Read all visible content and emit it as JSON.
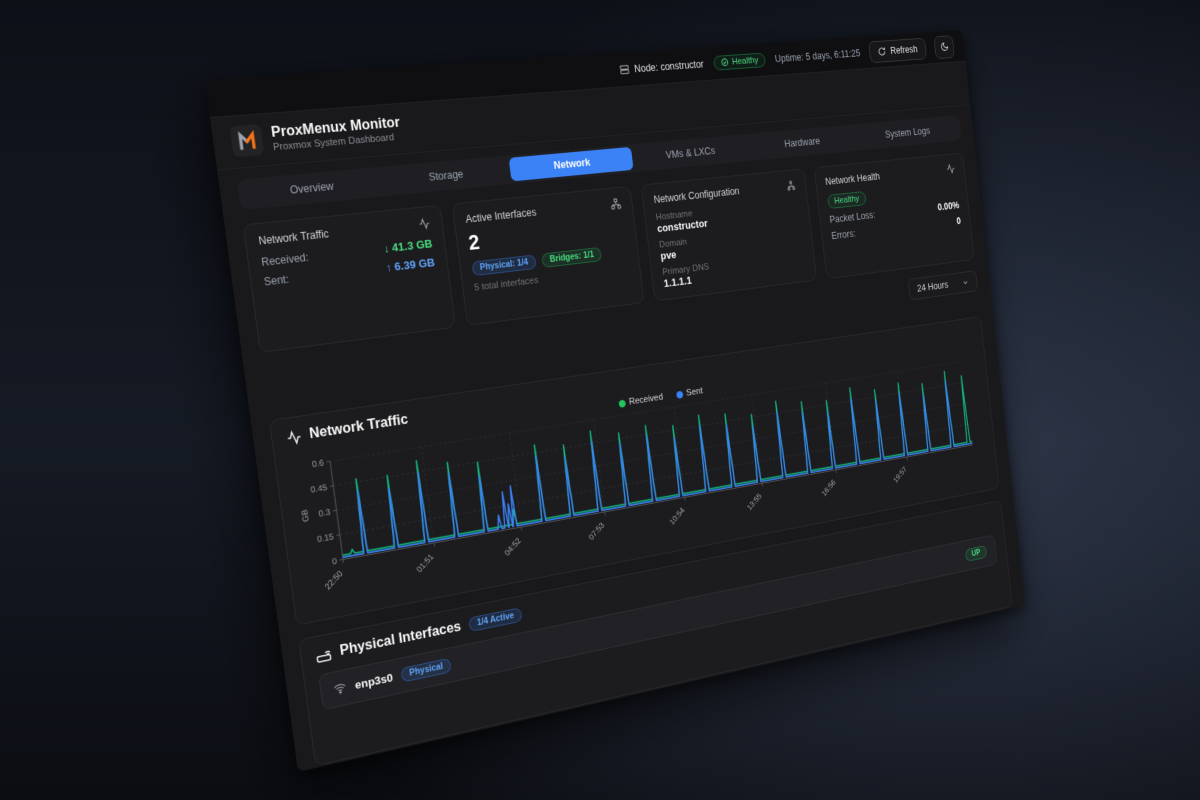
{
  "topbar": {
    "node_label": "Node: constructor",
    "health_badge": "Healthy",
    "uptime": "Uptime: 5 days, 6:11:25",
    "refresh_label": "Refresh"
  },
  "header": {
    "title": "ProxMenux Monitor",
    "subtitle": "Proxmox System Dashboard"
  },
  "tabs": [
    {
      "label": "Overview",
      "active": false
    },
    {
      "label": "Storage",
      "active": false
    },
    {
      "label": "Network",
      "active": true
    },
    {
      "label": "VMs & LXCs",
      "active": false
    },
    {
      "label": "Hardware",
      "active": false
    },
    {
      "label": "System Logs",
      "active": false
    }
  ],
  "cards": {
    "traffic": {
      "title": "Network Traffic",
      "received_label": "Received:",
      "received_value": "↓ 41.3 GB",
      "sent_label": "Sent:",
      "sent_value": "↑ 6.39 GB"
    },
    "interfaces": {
      "title": "Active Interfaces",
      "count": "2",
      "physical_badge": "Physical: 1/4",
      "bridges_badge": "Bridges: 1/1",
      "total": "5 total interfaces"
    },
    "config": {
      "title": "Network Configuration",
      "hostname_label": "Hostname",
      "hostname": "constructor",
      "domain_label": "Domain",
      "domain": "pve",
      "dns_label": "Primary DNS",
      "dns": "1.1.1.1"
    },
    "health": {
      "title": "Network Health",
      "status": "Healthy",
      "packet_loss_label": "Packet Loss:",
      "packet_loss": "0.00%",
      "errors_label": "Errors:",
      "errors": "0"
    }
  },
  "time_select": {
    "value": "24 Hours"
  },
  "chart_data": {
    "type": "line",
    "title": "Network Traffic",
    "ylabel": "GB",
    "ylim": [
      0,
      0.6
    ],
    "yticks": [
      0,
      0.15,
      0.3,
      0.45,
      0.6
    ],
    "xlim": [
      0,
      1440
    ],
    "xtick_minutes": [
      0,
      181,
      362,
      543,
      724,
      905,
      1086,
      1267
    ],
    "xtick_labels": [
      "22:50",
      "01:51",
      "04:52",
      "07:53",
      "10:54",
      "13:55",
      "16:56",
      "19:57"
    ],
    "legend": [
      "Received",
      "Sent"
    ],
    "grid": true,
    "legend_position": "top",
    "series": [
      {
        "name": "Received",
        "color": "#10b981",
        "baseline": 0.025,
        "spikes": [
          [
            20,
            0.05
          ],
          [
            45,
            0.47
          ],
          [
            106,
            0.46
          ],
          [
            167,
            0.52
          ],
          [
            228,
            0.48
          ],
          [
            289,
            0.45
          ],
          [
            350,
            0.12
          ],
          [
            411,
            0.5
          ],
          [
            472,
            0.47
          ],
          [
            533,
            0.53
          ],
          [
            594,
            0.49
          ],
          [
            655,
            0.51
          ],
          [
            716,
            0.48
          ],
          [
            777,
            0.52
          ],
          [
            838,
            0.5
          ],
          [
            899,
            0.47
          ],
          [
            960,
            0.53
          ],
          [
            1021,
            0.5
          ],
          [
            1082,
            0.48
          ],
          [
            1143,
            0.54
          ],
          [
            1204,
            0.5
          ],
          [
            1265,
            0.52
          ],
          [
            1326,
            0.49
          ],
          [
            1387,
            0.55
          ],
          [
            1430,
            0.5
          ]
        ]
      },
      {
        "name": "Sent",
        "color": "#3b82f6",
        "baseline": 0.012,
        "spikes": [
          [
            45,
            0.4
          ],
          [
            106,
            0.38
          ],
          [
            167,
            0.45
          ],
          [
            228,
            0.41
          ],
          [
            289,
            0.36
          ],
          [
            318,
            0.1
          ],
          [
            332,
            0.24
          ],
          [
            341,
            0.16
          ],
          [
            350,
            0.27
          ],
          [
            411,
            0.43
          ],
          [
            472,
            0.39
          ],
          [
            533,
            0.46
          ],
          [
            594,
            0.42
          ],
          [
            655,
            0.44
          ],
          [
            716,
            0.4
          ],
          [
            777,
            0.45
          ],
          [
            838,
            0.43
          ],
          [
            899,
            0.39
          ],
          [
            960,
            0.46
          ],
          [
            1021,
            0.43
          ],
          [
            1082,
            0.4
          ],
          [
            1143,
            0.47
          ],
          [
            1204,
            0.43
          ],
          [
            1265,
            0.45
          ],
          [
            1326,
            0.41
          ],
          [
            1387,
            0.48
          ]
        ]
      }
    ]
  },
  "physical_section": {
    "title": "Physical Interfaces",
    "active_badge": "1/4 Active",
    "rows": [
      {
        "name": "enp3s0",
        "type_badge": "Physical",
        "status": "UP"
      }
    ]
  },
  "colors": {
    "accent_blue": "#3b82f6",
    "received_green": "#10b981",
    "sent_blue": "#3b82f6",
    "healthy_green": "#4ade80",
    "logo_orange": "#f97316",
    "logo_gray": "#9ca3af"
  }
}
